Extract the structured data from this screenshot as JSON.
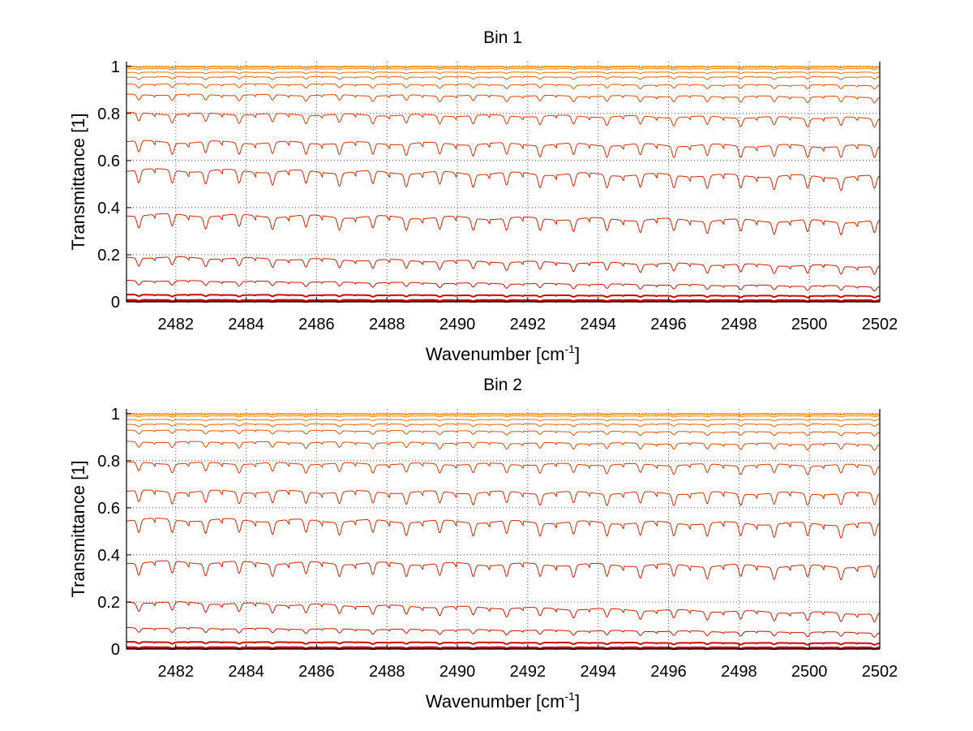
{
  "figure": {
    "background": "#ffffff",
    "description_colors": {
      "low": "#c00000",
      "mid": "#e03000",
      "high": "#ff9900"
    }
  },
  "chart_data": [
    {
      "type": "line",
      "title": "Bin 1",
      "xlabel_prefix": "Wavenumber [cm",
      "xlabel_sup": "-1",
      "xlabel_suffix": "]",
      "ylabel": "Transmittance [1]",
      "xlim": [
        2480.6,
        2502
      ],
      "ylim": [
        0,
        1.02
      ],
      "grid": true,
      "xticks": [
        2482,
        2484,
        2486,
        2488,
        2490,
        2492,
        2494,
        2496,
        2498,
        2500,
        2502
      ],
      "xtick_labels": [
        "2482",
        "2484",
        "2486",
        "2488",
        "2490",
        "2492",
        "2494",
        "2496",
        "2498",
        "2500",
        "2502"
      ],
      "yticks": [
        0,
        0.2,
        0.4,
        0.6,
        0.8,
        1
      ],
      "ytick_labels": [
        "0",
        "0.2",
        "0.4",
        "0.6",
        "0.8",
        "1"
      ],
      "series_baselines": [
        {
          "start": 0.002,
          "end": 0.002
        },
        {
          "start": 0.008,
          "end": 0.007
        },
        {
          "start": 0.03,
          "end": 0.025
        },
        {
          "start": 0.09,
          "end": 0.065
        },
        {
          "start": 0.19,
          "end": 0.15
        },
        {
          "start": 0.37,
          "end": 0.34
        },
        {
          "start": 0.56,
          "end": 0.53
        },
        {
          "start": 0.68,
          "end": 0.66
        },
        {
          "start": 0.8,
          "end": 0.78
        },
        {
          "start": 0.88,
          "end": 0.87
        },
        {
          "start": 0.925,
          "end": 0.92
        },
        {
          "start": 0.955,
          "end": 0.955
        },
        {
          "start": 0.975,
          "end": 0.975
        },
        {
          "start": 0.99,
          "end": 0.99
        },
        {
          "start": 0.997,
          "end": 0.997
        },
        {
          "start": 1.0,
          "end": 1.0
        }
      ],
      "absorption_line_spacing": 0.95,
      "absorption_line_offset": 2482.85,
      "absorption_line_width": 0.07
    },
    {
      "type": "line",
      "title": "Bin 2",
      "xlabel_prefix": "Wavenumber [cm",
      "xlabel_sup": "-1",
      "xlabel_suffix": "]",
      "ylabel": "Transmittance [1]",
      "xlim": [
        2480.6,
        2502
      ],
      "ylim": [
        0,
        1.02
      ],
      "grid": true,
      "xticks": [
        2482,
        2484,
        2486,
        2488,
        2490,
        2492,
        2494,
        2496,
        2498,
        2500,
        2502
      ],
      "xtick_labels": [
        "2482",
        "2484",
        "2486",
        "2488",
        "2490",
        "2492",
        "2494",
        "2496",
        "2498",
        "2500",
        "2502"
      ],
      "yticks": [
        0,
        0.2,
        0.4,
        0.6,
        0.8,
        1
      ],
      "ytick_labels": [
        "0",
        "0.2",
        "0.4",
        "0.6",
        "0.8",
        "1"
      ],
      "series_baselines": [
        {
          "start": 0.002,
          "end": 0.002
        },
        {
          "start": 0.008,
          "end": 0.007
        },
        {
          "start": 0.03,
          "end": 0.025
        },
        {
          "start": 0.09,
          "end": 0.07
        },
        {
          "start": 0.2,
          "end": 0.15
        },
        {
          "start": 0.37,
          "end": 0.35
        },
        {
          "start": 0.55,
          "end": 0.53
        },
        {
          "start": 0.67,
          "end": 0.66
        },
        {
          "start": 0.79,
          "end": 0.78
        },
        {
          "start": 0.88,
          "end": 0.87
        },
        {
          "start": 0.93,
          "end": 0.92
        },
        {
          "start": 0.955,
          "end": 0.955
        },
        {
          "start": 0.975,
          "end": 0.975
        },
        {
          "start": 0.99,
          "end": 0.99
        },
        {
          "start": 0.997,
          "end": 0.997
        },
        {
          "start": 1.0,
          "end": 1.0
        }
      ],
      "absorption_line_spacing": 0.95,
      "absorption_line_offset": 2482.85,
      "absorption_line_width": 0.07
    }
  ]
}
